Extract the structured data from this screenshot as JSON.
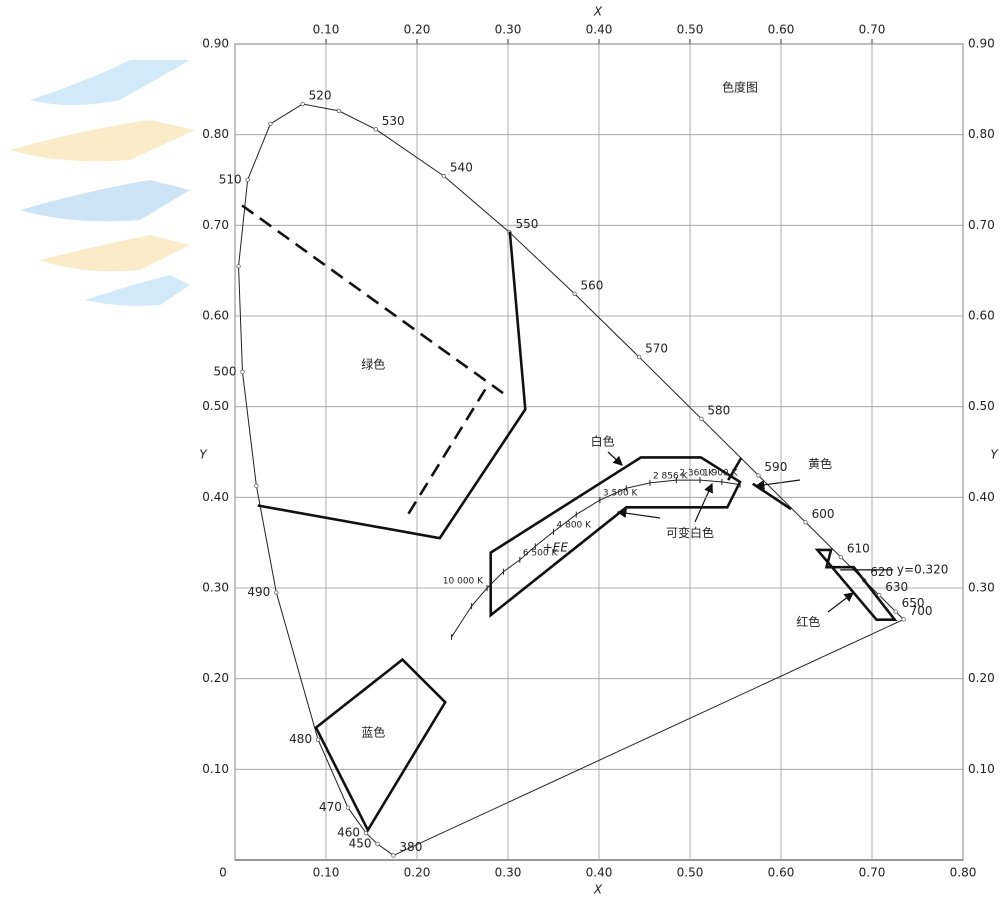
{
  "chart_data": {
    "type": "chromaticity",
    "title": "色度图",
    "x_label": "X",
    "y_label": "Y",
    "xlim": [
      0,
      0.8
    ],
    "ylim": [
      0,
      0.9
    ],
    "grid": true,
    "xticks": [
      {
        "value": 0,
        "label": "0"
      },
      {
        "value": 0.1,
        "label": "0.10"
      },
      {
        "value": 0.2,
        "label": "0.20"
      },
      {
        "value": 0.3,
        "label": "0.30"
      },
      {
        "value": 0.4,
        "label": "0.40"
      },
      {
        "value": 0.5,
        "label": "0.50"
      },
      {
        "value": 0.6,
        "label": "0.60"
      },
      {
        "value": 0.7,
        "label": "0.70"
      },
      {
        "value": 0.8,
        "label": "0.80"
      }
    ],
    "xticks_top": [
      {
        "value": 0.1,
        "label": "0.10"
      },
      {
        "value": 0.2,
        "label": "0.20"
      },
      {
        "value": 0.3,
        "label": "0.30"
      },
      {
        "value": 0.4,
        "label": "0.40"
      },
      {
        "value": 0.5,
        "label": "0.50"
      },
      {
        "value": 0.6,
        "label": "0.60"
      },
      {
        "value": 0.7,
        "label": "0.70"
      }
    ],
    "yticks": [
      {
        "value": 0.1,
        "label": "0.10"
      },
      {
        "value": 0.2,
        "label": "0.20"
      },
      {
        "value": 0.3,
        "label": "0.30"
      },
      {
        "value": 0.4,
        "label": "0.40"
      },
      {
        "value": 0.5,
        "label": "0.50"
      },
      {
        "value": 0.6,
        "label": "0.60"
      },
      {
        "value": 0.7,
        "label": "0.70"
      },
      {
        "value": 0.8,
        "label": "0.80"
      },
      {
        "value": 0.9,
        "label": "0.90"
      }
    ],
    "spectral_locus": {
      "labels": [
        380,
        450,
        460,
        470,
        480,
        490,
        null,
        500,
        null,
        510,
        null,
        520,
        null,
        530,
        540,
        550,
        560,
        570,
        580,
        590,
        600,
        610,
        620,
        630,
        650,
        700
      ],
      "x": [
        0.1741,
        0.1566,
        0.144,
        0.1241,
        0.0913,
        0.0454,
        0.0235,
        0.0082,
        0.0039,
        0.0139,
        0.0389,
        0.0743,
        0.1142,
        0.1547,
        0.2296,
        0.3016,
        0.3731,
        0.4441,
        0.5125,
        0.5752,
        0.627,
        0.6658,
        0.6915,
        0.7079,
        0.726,
        0.7347
      ],
      "y": [
        0.005,
        0.0177,
        0.0297,
        0.0578,
        0.1327,
        0.295,
        0.4127,
        0.5384,
        0.6548,
        0.7502,
        0.812,
        0.8338,
        0.8262,
        0.8059,
        0.7543,
        0.6923,
        0.6245,
        0.5547,
        0.4866,
        0.4242,
        0.3725,
        0.334,
        0.3083,
        0.292,
        0.274,
        0.2653
      ]
    },
    "planckian_locus": {
      "labels": [
        null,
        null,
        "10 000 K",
        null,
        "6 500 K",
        null,
        "4 800 K",
        null,
        "3 500 K",
        null,
        "2 856 K",
        "2 360 K",
        "1 900 K",
        null,
        null
      ],
      "x": [
        0.238,
        0.26,
        0.277,
        0.295,
        0.313,
        0.33,
        0.35,
        0.375,
        0.401,
        0.43,
        0.456,
        0.485,
        0.511,
        0.535,
        0.555
      ],
      "y": [
        0.246,
        0.28,
        0.3,
        0.318,
        0.331,
        0.346,
        0.362,
        0.381,
        0.397,
        0.41,
        0.416,
        0.419,
        0.419,
        0.417,
        0.414
      ]
    },
    "regions": [
      {
        "style": "dashed",
        "closed": false,
        "x": [
          0.0077,
          0.2945
        ],
        "y": [
          0.722,
          0.515
        ]
      },
      {
        "style": "dashed",
        "closed": false,
        "x": [
          0.275,
          0.187
        ],
        "y": [
          0.519,
          0.376
        ]
      },
      {
        "style": "solid",
        "closed": false,
        "x": [
          0.025,
          0.225,
          0.319,
          0.302
        ],
        "y": [
          0.391,
          0.355,
          0.497,
          0.693
        ]
      },
      {
        "style": "solid",
        "closed": true,
        "x": [
          0.089,
          0.184,
          0.231,
          0.146
        ],
        "y": [
          0.146,
          0.221,
          0.174,
          0.033
        ]
      },
      {
        "style": "solid",
        "closed": true,
        "x": [
          0.281,
          0.446,
          0.512,
          0.555,
          0.541,
          0.43,
          0.281
        ],
        "y": [
          0.339,
          0.444,
          0.444,
          0.417,
          0.389,
          0.389,
          0.27
        ]
      },
      {
        "style": "solid",
        "closed": false,
        "x": [
          0.542,
          0.556
        ],
        "y": [
          0.419,
          0.443
        ]
      },
      {
        "style": "solid",
        "closed": false,
        "x": [
          0.569,
          0.611
        ],
        "y": [
          0.415,
          0.387
        ]
      },
      {
        "style": "solid",
        "closed": true,
        "x": [
          0.64,
          0.655,
          0.65,
          0.68,
          0.725,
          0.705
        ],
        "y": [
          0.342,
          0.342,
          0.323,
          0.323,
          0.265,
          0.265
        ]
      }
    ],
    "reference_line": {
      "label": "y=0.320",
      "y": 0.32,
      "x": [
        0.665,
        0.723
      ]
    },
    "annotations": [
      {
        "text": "绿色",
        "x": 0.152,
        "y": 0.546
      },
      {
        "text": "蓝色",
        "x": 0.152,
        "y": 0.14
      },
      {
        "text": "白色",
        "x": 0.404,
        "y": 0.461
      },
      {
        "text": "可变白色",
        "x": 0.5,
        "y": 0.36
      },
      {
        "text": "黄色",
        "x": 0.643,
        "y": 0.436
      },
      {
        "text": "红色",
        "x": 0.63,
        "y": 0.262
      },
      {
        "text": "+EE",
        "x": 0.352,
        "y": 0.344
      }
    ]
  }
}
